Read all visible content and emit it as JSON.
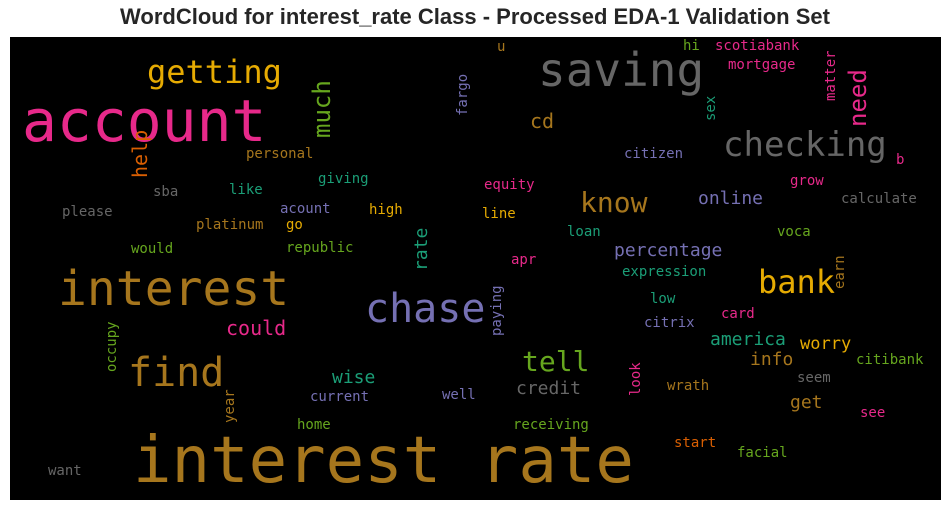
{
  "title": "WordCloud for interest_rate Class - Processed EDA-1 Validation Set",
  "words": [
    {
      "text": "interest rate",
      "color": "#a6761d"
    },
    {
      "text": "account",
      "color": "#e7298a"
    },
    {
      "text": "saving",
      "color": "#666666"
    },
    {
      "text": "interest",
      "color": "#a6761d"
    },
    {
      "text": "chase",
      "color": "#7570b3"
    },
    {
      "text": "checking",
      "color": "#666666"
    },
    {
      "text": "getting",
      "color": "#e6ab02"
    },
    {
      "text": "find",
      "color": "#a6761d"
    },
    {
      "text": "bank",
      "color": "#e6ab02"
    },
    {
      "text": "much",
      "color": "#66a61e"
    },
    {
      "text": "need",
      "color": "#e7298a"
    },
    {
      "text": "know",
      "color": "#a6761d"
    },
    {
      "text": "tell",
      "color": "#66a61e"
    },
    {
      "text": "help",
      "color": "#d95f02"
    },
    {
      "text": "cd",
      "color": "#a6761d"
    },
    {
      "text": "could",
      "color": "#e7298a"
    },
    {
      "text": "percentage",
      "color": "#7570b3"
    },
    {
      "text": "online",
      "color": "#7570b3"
    },
    {
      "text": "wise",
      "color": "#1b9e77"
    },
    {
      "text": "credit",
      "color": "#666666"
    },
    {
      "text": "rate",
      "color": "#1b9e77"
    },
    {
      "text": "america",
      "color": "#1b9e77"
    },
    {
      "text": "worry",
      "color": "#e6ab02"
    },
    {
      "text": "info",
      "color": "#a6761d"
    },
    {
      "text": "get",
      "color": "#a6761d"
    },
    {
      "text": "scotiabank",
      "color": "#e7298a"
    },
    {
      "text": "mortgage",
      "color": "#e7298a"
    },
    {
      "text": "hi",
      "color": "#66a61e"
    },
    {
      "text": "u",
      "color": "#a6761d"
    },
    {
      "text": "fargo",
      "color": "#7570b3"
    },
    {
      "text": "sex",
      "color": "#1b9e77"
    },
    {
      "text": "matter",
      "color": "#e7298a"
    },
    {
      "text": "personal",
      "color": "#a6761d"
    },
    {
      "text": "citizen",
      "color": "#7570b3"
    },
    {
      "text": "b",
      "color": "#e7298a"
    },
    {
      "text": "grow",
      "color": "#e7298a"
    },
    {
      "text": "calculate",
      "color": "#666666"
    },
    {
      "text": "sba",
      "color": "#666666"
    },
    {
      "text": "like",
      "color": "#1b9e77"
    },
    {
      "text": "giving",
      "color": "#1b9e77"
    },
    {
      "text": "equity",
      "color": "#e7298a"
    },
    {
      "text": "please",
      "color": "#666666"
    },
    {
      "text": "acount",
      "color": "#7570b3"
    },
    {
      "text": "high",
      "color": "#e6ab02"
    },
    {
      "text": "line",
      "color": "#e6ab02"
    },
    {
      "text": "platinum",
      "color": "#a6761d"
    },
    {
      "text": "go",
      "color": "#e6ab02"
    },
    {
      "text": "loan",
      "color": "#1b9e77"
    },
    {
      "text": "voca",
      "color": "#66a61e"
    },
    {
      "text": "earn",
      "color": "#a6761d"
    },
    {
      "text": "would",
      "color": "#66a61e"
    },
    {
      "text": "republic",
      "color": "#66a61e"
    },
    {
      "text": "apr",
      "color": "#e7298a"
    },
    {
      "text": "expression",
      "color": "#1b9e77"
    },
    {
      "text": "paying",
      "color": "#7570b3"
    },
    {
      "text": "low",
      "color": "#1b9e77"
    },
    {
      "text": "card",
      "color": "#e7298a"
    },
    {
      "text": "citrix",
      "color": "#7570b3"
    },
    {
      "text": "occupy",
      "color": "#66a61e"
    },
    {
      "text": "citibank",
      "color": "#66a61e"
    },
    {
      "text": "look",
      "color": "#e7298a"
    },
    {
      "text": "seem",
      "color": "#666666"
    },
    {
      "text": "year",
      "color": "#a6761d"
    },
    {
      "text": "well",
      "color": "#7570b3"
    },
    {
      "text": "current",
      "color": "#7570b3"
    },
    {
      "text": "wrath",
      "color": "#a6761d"
    },
    {
      "text": "see",
      "color": "#e7298a"
    },
    {
      "text": "home",
      "color": "#66a61e"
    },
    {
      "text": "receiving",
      "color": "#66a61e"
    },
    {
      "text": "start",
      "color": "#d95f02"
    },
    {
      "text": "facial",
      "color": "#66a61e"
    },
    {
      "text": "want",
      "color": "#666666"
    }
  ]
}
